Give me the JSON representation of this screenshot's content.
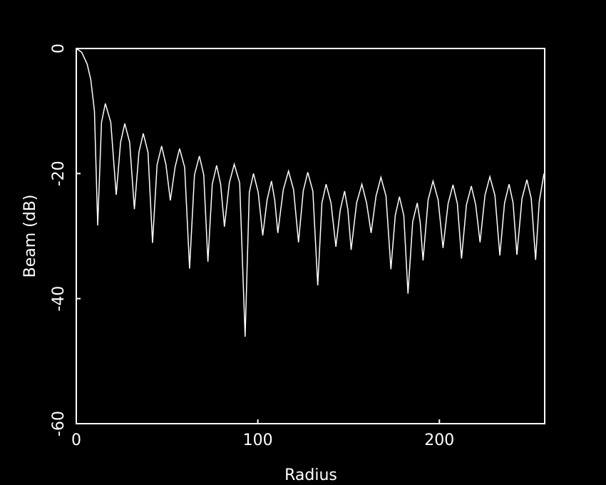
{
  "chart_data": {
    "type": "line",
    "xlabel": "Radius",
    "ylabel": "Beam (dB)",
    "xlim": [
      0,
      258
    ],
    "ylim": [
      -60,
      0
    ],
    "xticks": [
      0,
      100,
      200
    ],
    "yticks": [
      0,
      -20,
      -40,
      -60
    ],
    "background": "#000000",
    "axis_color": "#ffffff",
    "series": [
      {
        "color": "#ffffff",
        "x": [
          0,
          3,
          6,
          8,
          10,
          11.8,
          13.9,
          16,
          19,
          22,
          24.4,
          26.7,
          29.4,
          32,
          34.5,
          36.9,
          39.5,
          42,
          44.5,
          47,
          49.4,
          51.8,
          54.4,
          56.9,
          59.7,
          62.4,
          65.1,
          67.8,
          70.2,
          72.5,
          74.9,
          77.3,
          79.5,
          81.6,
          84.3,
          87,
          90,
          93,
          95.3,
          97.6,
          100.2,
          102.7,
          105.1,
          107.5,
          109.3,
          111,
          114,
          116.9,
          119.7,
          122.4,
          125,
          127.5,
          130.3,
          133,
          135.3,
          137.6,
          140.3,
          143,
          145.4,
          147.8,
          149.6,
          151.4,
          154.4,
          157.3,
          159.9,
          162.4,
          165.1,
          167.8,
          170.6,
          173.3,
          175.7,
          178,
          180.4,
          182.7,
          185.3,
          187.8,
          189.4,
          191,
          193.8,
          196.5,
          199.3,
          202,
          204.8,
          207.5,
          209.9,
          212.2,
          214.9,
          217.6,
          220,
          222.4,
          225.1,
          227.8,
          230.6,
          233.3,
          235.9,
          238.4,
          240.6,
          242.7,
          245.5,
          248.2,
          250.6,
          253,
          255,
          257.6
        ],
        "values": [
          0,
          -0.6,
          -2.5,
          -5,
          -10,
          -28.3,
          -11.8,
          -8.8,
          -11.8,
          -23.4,
          -15,
          -12,
          -15,
          -25.7,
          -16.6,
          -13.6,
          -16.6,
          -31.1,
          -18.6,
          -15.6,
          -18.6,
          -24.3,
          -19,
          -16,
          -19,
          -35.2,
          -20.2,
          -17.2,
          -20.2,
          -34.1,
          -21.7,
          -18.7,
          -21.7,
          -28.5,
          -21.5,
          -18.5,
          -21.5,
          -46.1,
          -23,
          -20,
          -23,
          -29.9,
          -24.2,
          -21.2,
          -24.2,
          -29.5,
          -22.6,
          -19.6,
          -22.6,
          -31,
          -22.8,
          -19.8,
          -22.8,
          -37.9,
          -24.7,
          -21.7,
          -24.7,
          -31.7,
          -25.8,
          -22.8,
          -25.8,
          -32.2,
          -24.7,
          -21.7,
          -24.7,
          -29.5,
          -23.6,
          -20.6,
          -23.6,
          -35.3,
          -26.7,
          -23.7,
          -26.7,
          -39.2,
          -27.7,
          -24.7,
          -27.7,
          -33.9,
          -24.2,
          -21.2,
          -24.2,
          -31.9,
          -24.8,
          -21.8,
          -24.8,
          -33.6,
          -25,
          -22,
          -25,
          -31,
          -23.5,
          -20.5,
          -23.5,
          -33.1,
          -24.7,
          -21.7,
          -24.7,
          -33,
          -24,
          -21,
          -24,
          -33.8,
          -24.5,
          -20
        ]
      }
    ]
  }
}
